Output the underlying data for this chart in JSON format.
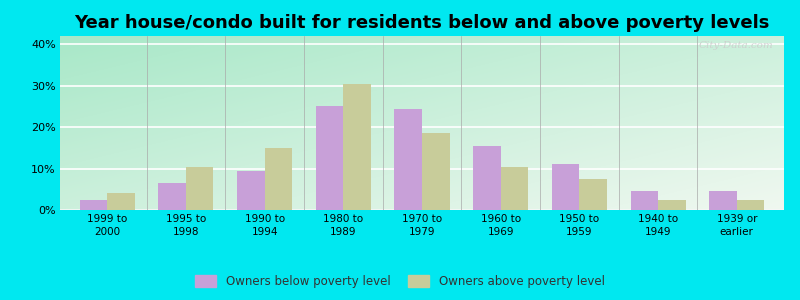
{
  "title": "Year house/condo built for residents below and above poverty levels",
  "categories": [
    "1999 to\n2000",
    "1995 to\n1998",
    "1990 to\n1994",
    "1980 to\n1989",
    "1970 to\n1979",
    "1960 to\n1969",
    "1950 to\n1959",
    "1940 to\n1949",
    "1939 or\nearlier"
  ],
  "below_poverty": [
    2.5,
    6.5,
    9.5,
    25.0,
    24.5,
    15.5,
    11.0,
    4.5,
    4.5
  ],
  "above_poverty": [
    4.0,
    10.5,
    15.0,
    30.5,
    18.5,
    10.5,
    7.5,
    2.5,
    2.5
  ],
  "below_color": "#c8a0d8",
  "above_color": "#c8cc9a",
  "ylim": [
    0,
    42
  ],
  "yticks": [
    0,
    10,
    20,
    30,
    40
  ],
  "ytick_labels": [
    "0%",
    "10%",
    "20%",
    "30%",
    "40%"
  ],
  "outer_bg": "#00e8f0",
  "bar_width": 0.35,
  "title_fontsize": 13,
  "legend_below": "Owners below poverty level",
  "legend_above": "Owners above poverty level",
  "watermark": "City-Data.com",
  "gradient_top_left": "#a8e8c8",
  "gradient_bottom_right": "#f0f8f0"
}
